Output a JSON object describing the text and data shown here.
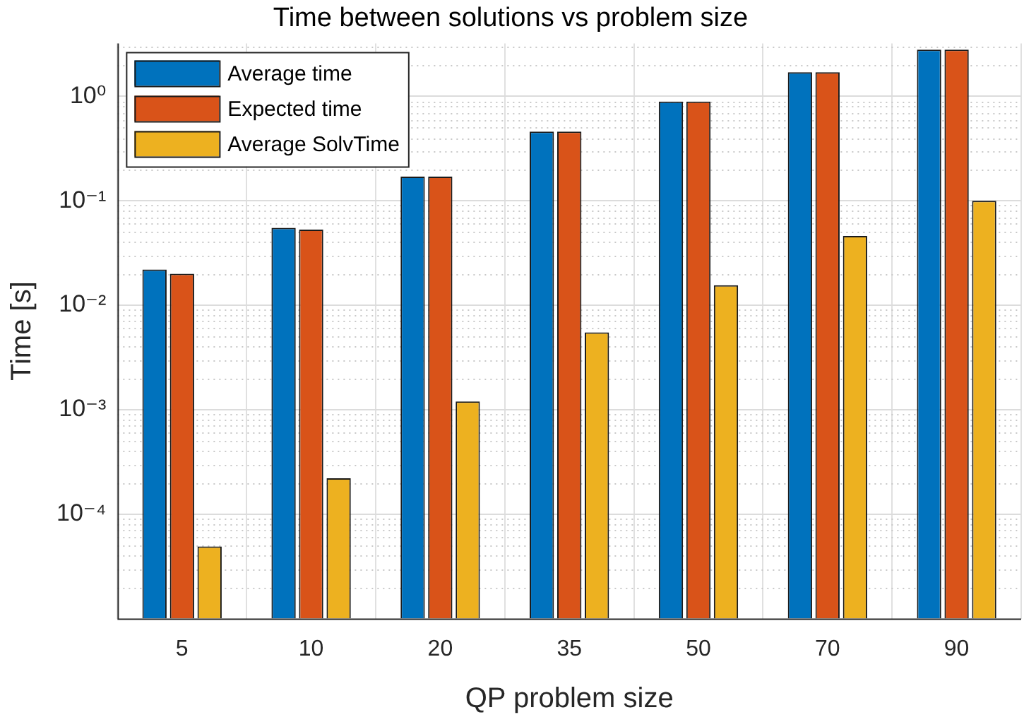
{
  "chart_data": {
    "type": "bar",
    "title": "Time between solutions vs problem size",
    "xlabel": "QP problem size",
    "ylabel": "Time [s]",
    "categories": [
      "5",
      "10",
      "20",
      "35",
      "50",
      "70",
      "90"
    ],
    "series": [
      {
        "name": "Average time",
        "color": "#0072bd",
        "values": [
          0.022,
          0.055,
          0.17,
          0.46,
          0.89,
          1.7,
          2.8
        ]
      },
      {
        "name": "Expected time",
        "color": "#d95319",
        "values": [
          0.02,
          0.053,
          0.17,
          0.46,
          0.89,
          1.7,
          2.8
        ]
      },
      {
        "name": "Average SolvTime",
        "color": "#edb120",
        "values": [
          4.9e-05,
          0.00022,
          0.0012,
          0.0055,
          0.0155,
          0.046,
          0.1
        ]
      }
    ],
    "log": "y",
    "ylim": [
      1e-05,
      3.2
    ],
    "yticks": [
      {
        "value": 0.0001,
        "label": "10⁻⁴"
      },
      {
        "value": 0.001,
        "label": "10⁻³"
      },
      {
        "value": 0.01,
        "label": "10⁻²"
      },
      {
        "value": 0.1,
        "label": "10⁻¹"
      },
      {
        "value": 1,
        "label": "10⁰"
      }
    ],
    "grid": true,
    "legend": "top left"
  }
}
